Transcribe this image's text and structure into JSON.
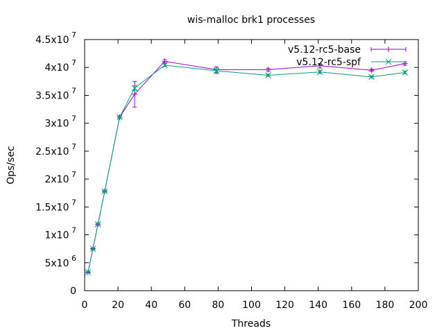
{
  "chart_data": {
    "type": "line",
    "title": "wis-malloc brk1 processes",
    "xlabel": "Threads",
    "ylabel": "Ops/sec",
    "xlim": [
      0,
      200
    ],
    "ylim": [
      0,
      45000000
    ],
    "x_ticks": [
      0,
      20,
      40,
      60,
      80,
      100,
      120,
      140,
      160,
      180,
      200
    ],
    "x_tick_labels": [
      "0",
      "20",
      "40",
      "60",
      "80",
      "100",
      "120",
      "140",
      "160",
      "180",
      "200"
    ],
    "y_ticks": [
      {
        "value": 0,
        "mantissa": "0",
        "exp": ""
      },
      {
        "value": 5000000,
        "mantissa": "5x10",
        "exp": "6"
      },
      {
        "value": 10000000,
        "mantissa": "1x10",
        "exp": "7"
      },
      {
        "value": 15000000,
        "mantissa": "1.5x10",
        "exp": "7"
      },
      {
        "value": 20000000,
        "mantissa": "2x10",
        "exp": "7"
      },
      {
        "value": 25000000,
        "mantissa": "2.5x10",
        "exp": "7"
      },
      {
        "value": 30000000,
        "mantissa": "3x10",
        "exp": "7"
      },
      {
        "value": 35000000,
        "mantissa": "3.5x10",
        "exp": "7"
      },
      {
        "value": 40000000,
        "mantissa": "4x10",
        "exp": "7"
      },
      {
        "value": 45000000,
        "mantissa": "4.5x10",
        "exp": "7"
      }
    ],
    "grid": false,
    "legend_position": "top-right",
    "x": [
      2,
      5,
      8,
      12,
      21,
      30,
      48,
      79,
      110,
      141,
      172,
      192
    ],
    "series": [
      {
        "name": "v5.12-rc5-base",
        "color": "#9400d3",
        "marker": "plus",
        "values": [
          3300000,
          7500000,
          11900000,
          17800000,
          31100000,
          35200000,
          41100000,
          39600000,
          39600000,
          40300000,
          39500000,
          40700000
        ],
        "errors": [
          100000,
          150000,
          150000,
          150000,
          250000,
          2300000,
          300000,
          500000,
          250000,
          400000,
          200000,
          300000
        ]
      },
      {
        "name": "v5.12-rc5-spf",
        "color": "#009e73",
        "marker": "cross",
        "values": [
          3300000,
          7500000,
          11900000,
          17800000,
          31100000,
          36300000,
          40400000,
          39400000,
          38600000,
          39200000,
          38300000,
          39100000
        ],
        "errors": [
          100000,
          100000,
          150000,
          150000,
          200000,
          400000,
          250000,
          500000,
          200000,
          300000,
          200000,
          250000
        ]
      }
    ]
  }
}
